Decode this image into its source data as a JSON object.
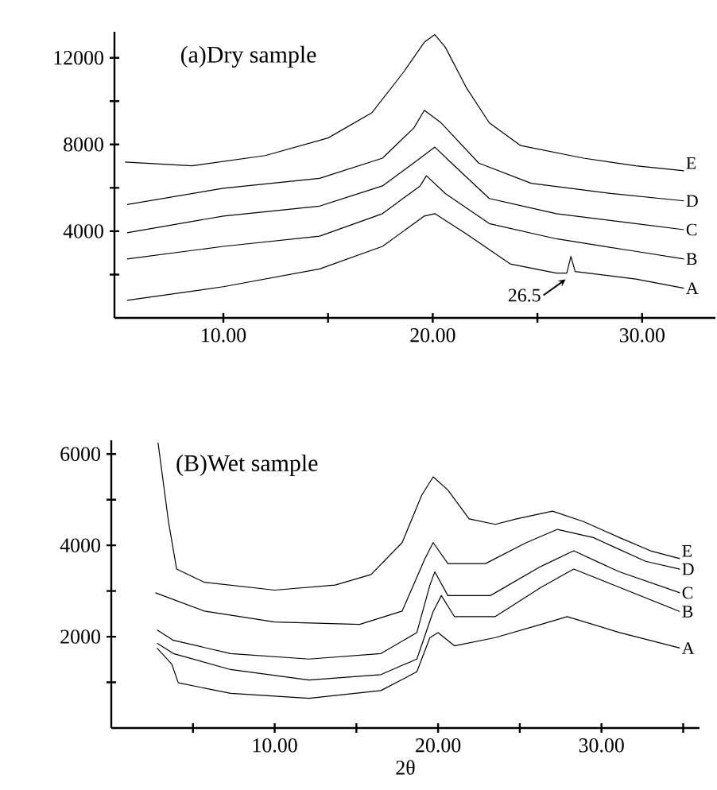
{
  "chart_data": [
    {
      "type": "line",
      "title": "(a)Dry sample",
      "xlim": [
        4.8,
        33.5
      ],
      "ylim": [
        0,
        13200
      ],
      "xticks": [
        {
          "value": 10,
          "label": "10.00"
        },
        {
          "value": 15,
          "label": null
        },
        {
          "value": 20,
          "label": "20.00"
        },
        {
          "value": 25,
          "label": null
        },
        {
          "value": 30,
          "label": "30.00"
        }
      ],
      "yticks": [
        {
          "value": 2000,
          "label": null
        },
        4000,
        {
          "value": 6000,
          "label": null
        },
        8000,
        {
          "value": 10000,
          "label": null
        },
        12000
      ],
      "annotations": [
        {
          "text": "26.5",
          "x": 26.5,
          "y": 2070
        }
      ],
      "series": [
        {
          "name": "E",
          "color": "#000000",
          "x": [
            5.3,
            8.5,
            12,
            15,
            17.1,
            18.6,
            19.6,
            20.1,
            20.6,
            21.6,
            22.7,
            24.2,
            27.2,
            29.7,
            32.0
          ],
          "values": [
            7190,
            7020,
            7490,
            8300,
            9470,
            11330,
            12720,
            13070,
            12490,
            10630,
            9000,
            7950,
            7370,
            7020,
            6790
          ]
        },
        {
          "name": "D",
          "color": "#000000",
          "x": [
            5.4,
            10,
            14.6,
            17.6,
            19.1,
            19.6,
            20.4,
            22.2,
            24.7,
            28.5,
            32.0
          ],
          "values": [
            5230,
            5980,
            6440,
            7370,
            8770,
            9580,
            9000,
            7140,
            6210,
            5740,
            5400
          ]
        },
        {
          "name": "C",
          "color": "#000000",
          "x": [
            5.4,
            10,
            14.6,
            17.6,
            19.4,
            20.1,
            20.9,
            22.7,
            25.9,
            29.7,
            32.0
          ],
          "values": [
            3930,
            4700,
            5160,
            6090,
            7370,
            7880,
            7140,
            5510,
            4810,
            4350,
            4070
          ]
        },
        {
          "name": "B",
          "color": "#000000",
          "x": [
            5.4,
            10,
            14.6,
            17.6,
            19.4,
            19.7,
            20.6,
            22.7,
            25.9,
            29.7,
            32.0
          ],
          "values": [
            2720,
            3300,
            3770,
            4810,
            6090,
            6560,
            5740,
            4350,
            3650,
            3070,
            2720
          ]
        },
        {
          "name": "A",
          "color": "#000000",
          "x": [
            5.4,
            10,
            14.6,
            17.6,
            19.6,
            20.1,
            21.6,
            23.7,
            25.9,
            26.4,
            26.6,
            26.8,
            29.7,
            32.0
          ],
          "values": [
            810,
            1440,
            2260,
            3300,
            4700,
            4810,
            3880,
            2490,
            2070,
            2070,
            2840,
            2140,
            1790,
            1370
          ]
        }
      ]
    },
    {
      "type": "line",
      "title": "(B)Wet sample",
      "xlabel": "2θ",
      "xlim": [
        0,
        36
      ],
      "ylim": [
        0,
        6300
      ],
      "xticks": [
        {
          "value": 5,
          "label": null
        },
        {
          "value": 10,
          "label": "10.00"
        },
        {
          "value": 15,
          "label": null
        },
        {
          "value": 20,
          "label": "20.00"
        },
        {
          "value": 25,
          "label": null
        },
        {
          "value": 30,
          "label": "30.00"
        },
        {
          "value": 35,
          "label": null
        }
      ],
      "yticks": [
        {
          "value": 1000,
          "label": null
        },
        2000,
        {
          "value": 3000,
          "label": null
        },
        4000,
        {
          "value": 5000,
          "label": null
        },
        6000
      ],
      "series": [
        {
          "name": "E",
          "color": "#000000",
          "x": [
            2.86,
            3.5,
            4.0,
            5.7,
            10,
            13.7,
            15.9,
            17.8,
            19.0,
            19.7,
            20.6,
            21.9,
            23.5,
            24.8,
            27.0,
            28.9,
            31.1,
            33.0,
            34.8
          ],
          "values": [
            6250,
            4520,
            3480,
            3190,
            3020,
            3130,
            3360,
            4060,
            5100,
            5500,
            5210,
            4580,
            4460,
            4580,
            4750,
            4520,
            4170,
            3880,
            3710
          ]
        },
        {
          "name": "D",
          "color": "#000000",
          "x": [
            2.7,
            5.7,
            10,
            15.2,
            17.8,
            19.2,
            19.7,
            20.6,
            22.9,
            25.4,
            27.3,
            29.5,
            32.7,
            34.8
          ],
          "values": [
            2960,
            2560,
            2320,
            2270,
            2560,
            3710,
            4060,
            3600,
            3600,
            4060,
            4350,
            4170,
            3650,
            3480
          ]
        },
        {
          "name": "C",
          "color": "#000000",
          "x": [
            2.8,
            3.8,
            7.3,
            12.1,
            16.5,
            18.7,
            19.5,
            19.8,
            20.6,
            23.2,
            26.3,
            28.3,
            31.1,
            34.8
          ],
          "values": [
            2150,
            1920,
            1630,
            1510,
            1630,
            2090,
            3130,
            3420,
            2900,
            2900,
            3540,
            3880,
            3420,
            2960
          ]
        },
        {
          "name": "B",
          "color": "#000000",
          "x": [
            2.8,
            3.8,
            7.3,
            12.1,
            16.5,
            18.7,
            19.7,
            20.2,
            21.0,
            23.5,
            26.3,
            28.3,
            31.1,
            34.8
          ],
          "values": [
            1860,
            1630,
            1280,
            1050,
            1170,
            1510,
            2550,
            2900,
            2440,
            2440,
            3080,
            3480,
            3080,
            2550
          ]
        },
        {
          "name": "A",
          "color": "#000000",
          "x": [
            2.8,
            3.7,
            4.1,
            7.3,
            12.1,
            16.5,
            18.7,
            19.5,
            20.0,
            21.0,
            23.5,
            26.3,
            27.9,
            31.1,
            34.8
          ],
          "values": [
            1750,
            1400,
            990,
            760,
            650,
            820,
            1230,
            1980,
            2090,
            1800,
            1980,
            2270,
            2440,
            2090,
            1750
          ]
        }
      ]
    }
  ]
}
